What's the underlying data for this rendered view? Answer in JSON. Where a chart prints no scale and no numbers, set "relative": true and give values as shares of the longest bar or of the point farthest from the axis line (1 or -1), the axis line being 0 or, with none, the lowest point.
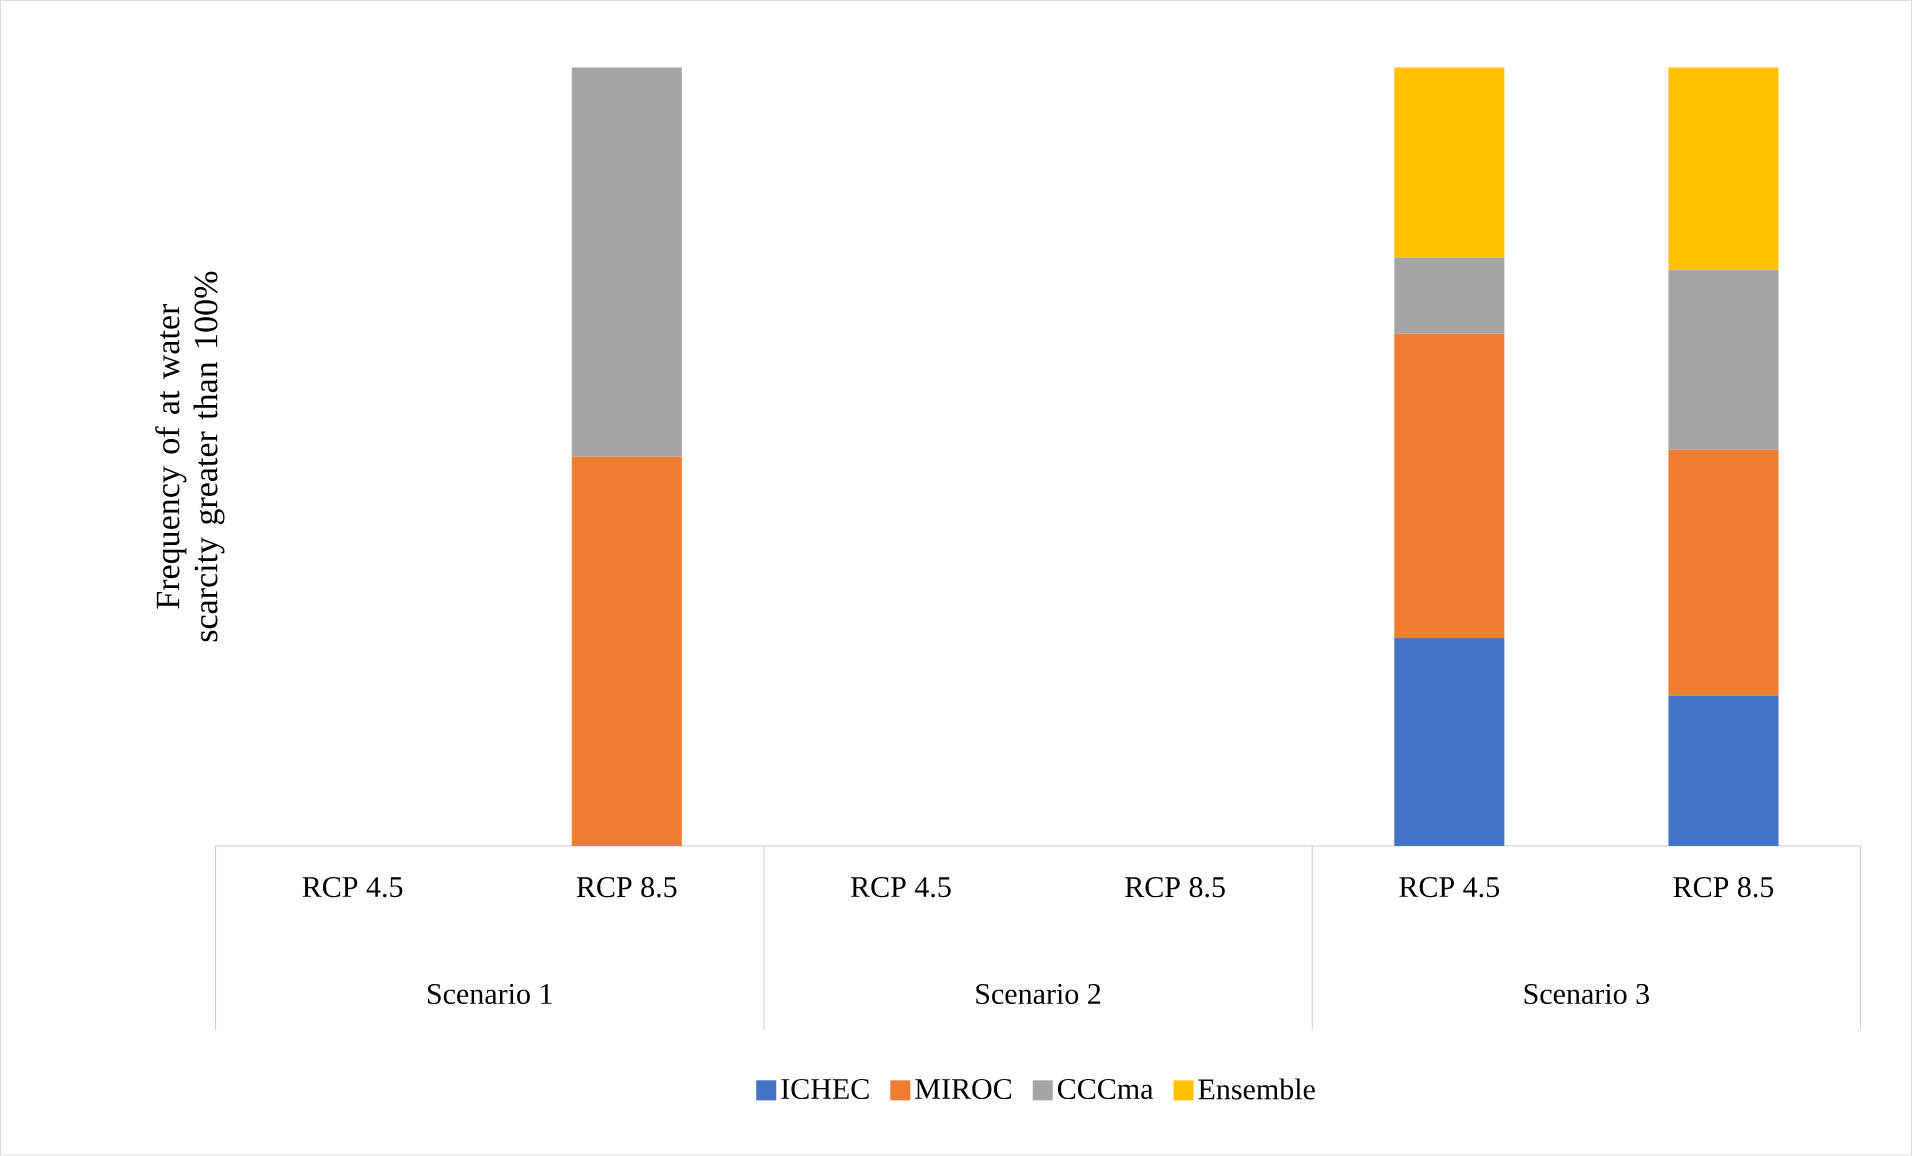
{
  "chart_data": {
    "type": "bar",
    "stacked": true,
    "relative": true,
    "ylabel": "Frequency of at water scarcity greater than 100%",
    "categories": [
      "RCP 4.5",
      "RCP 8.5",
      "RCP 4.5",
      "RCP 8.5",
      "RCP 4.5",
      "RCP 8.5"
    ],
    "annotations": [
      "Scenario 1",
      "Scenario 2",
      "Scenario 3"
    ],
    "series": [
      {
        "name": "ICHEC",
        "color": "#4472c4",
        "values": [
          0,
          0,
          0,
          0,
          0.267,
          0.193
        ]
      },
      {
        "name": "MIROC",
        "color": "#ed7d31",
        "values": [
          0,
          0.5,
          0,
          0,
          0.391,
          0.316
        ]
      },
      {
        "name": "CCCma",
        "color": "#a5a5a5",
        "values": [
          0,
          0.5,
          0,
          0,
          0.098,
          0.231
        ]
      },
      {
        "name": "Ensemble",
        "color": "#ffc000",
        "values": [
          0,
          0,
          0,
          0,
          0.244,
          0.26
        ]
      }
    ],
    "legend": "bottom"
  }
}
